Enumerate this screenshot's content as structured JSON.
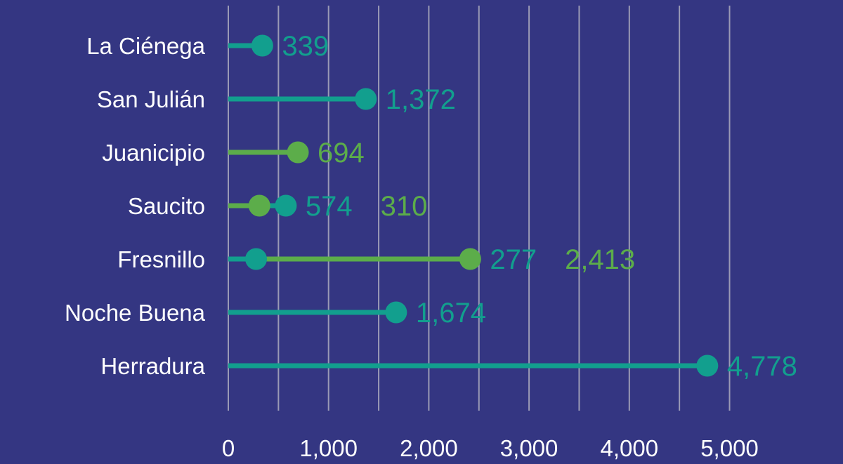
{
  "colors": {
    "background": "#343682",
    "teal": "#129f8e",
    "green": "#5cad4a",
    "gridline": "#9a9ab5",
    "text": "#ffffff"
  },
  "chart_data": {
    "type": "lollipop",
    "categories": [
      "La Ciénega",
      "San Julián",
      "Juanicipio",
      "Saucito",
      "Fresnillo",
      "Noche Buena",
      "Herradura"
    ],
    "series": [
      {
        "color": "teal",
        "values": [
          339,
          1372,
          null,
          574,
          277,
          1674,
          4778
        ]
      },
      {
        "color": "green",
        "values": [
          null,
          null,
          694,
          310,
          2413,
          null,
          null
        ]
      }
    ],
    "value_labels": [
      {
        "category": "La Ciénega",
        "label": "339",
        "color": "teal"
      },
      {
        "category": "San Julián",
        "label": "1,372",
        "color": "teal"
      },
      {
        "category": "Juanicipio",
        "label": "694",
        "color": "green"
      },
      {
        "category": "Saucito",
        "label": "574",
        "color": "teal"
      },
      {
        "category": "Saucito",
        "label": "310",
        "color": "green"
      },
      {
        "category": "Fresnillo",
        "label": "277",
        "color": "teal"
      },
      {
        "category": "Fresnillo",
        "label": "2,413",
        "color": "green"
      },
      {
        "category": "Noche Buena",
        "label": "1,674",
        "color": "teal"
      },
      {
        "category": "Herradura",
        "label": "4,778",
        "color": "teal"
      }
    ],
    "xlim": [
      0,
      5000
    ],
    "xticks": [
      0,
      1000,
      2000,
      3000,
      4000,
      5000
    ],
    "xtick_labels": [
      "0",
      "1,000",
      "2,000",
      "3,000",
      "4,000",
      "5,000"
    ],
    "grid": true,
    "title": "",
    "xlabel": "",
    "ylabel": ""
  }
}
